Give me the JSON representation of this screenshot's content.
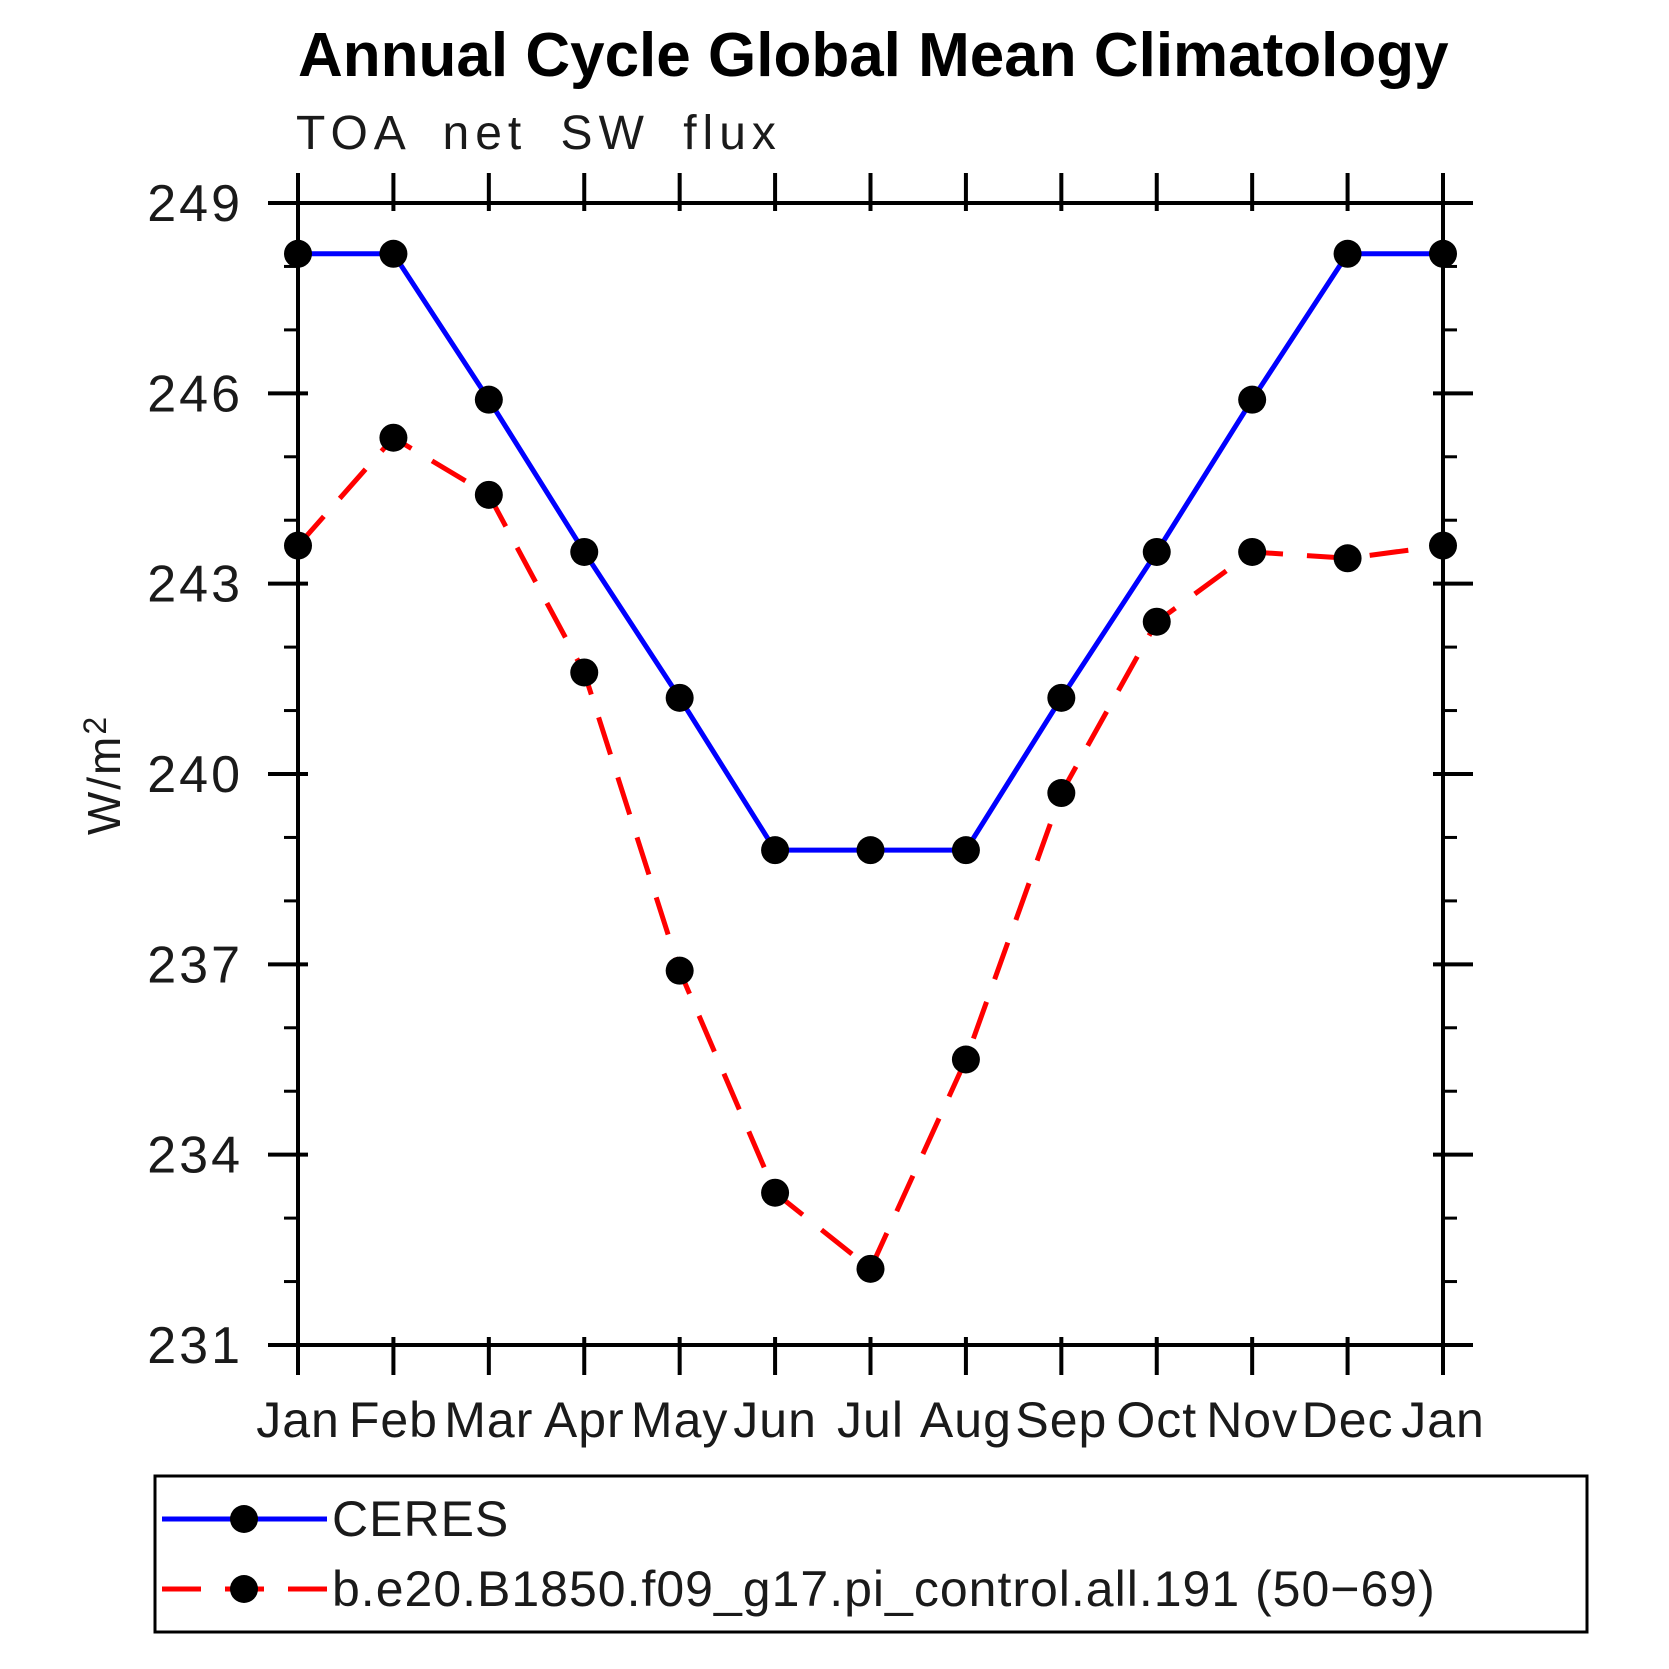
{
  "header": {
    "title": "Annual Cycle Global Mean Climatology",
    "subtitle": "TOA net SW flux"
  },
  "axes": {
    "ylabel": "W/m²",
    "y_tick_labels": [
      "249",
      "246",
      "243",
      "240",
      "237",
      "234",
      "231"
    ],
    "x_tick_labels": [
      "Jan",
      "Feb",
      "Mar",
      "Apr",
      "May",
      "Jun",
      "Jul",
      "Aug",
      "Sep",
      "Oct",
      "Nov",
      "Dec",
      "Jan"
    ]
  },
  "colors": {
    "ceres_line": "#0000ff",
    "model_line": "#ff0000",
    "marker": "#000000",
    "axis": "#000000",
    "background": "#ffffff"
  },
  "chart_data": {
    "type": "line",
    "title": "Annual Cycle Global Mean Climatology",
    "subtitle": "TOA net SW flux",
    "ylabel": "W/m²",
    "xlabel": "",
    "categories": [
      "Jan",
      "Feb",
      "Mar",
      "Apr",
      "May",
      "Jun",
      "Jul",
      "Aug",
      "Sep",
      "Oct",
      "Nov",
      "Dec",
      "Jan"
    ],
    "ylim": [
      231,
      249
    ],
    "yticks_major": [
      231,
      234,
      237,
      240,
      243,
      246,
      249
    ],
    "yticks_minor_step": 1,
    "grid": false,
    "legend_position": "bottom-box",
    "series": [
      {
        "name": "CERES",
        "color": "#0000ff",
        "style": "solid",
        "marker": "circle",
        "marker_color": "#000000",
        "values": [
          248.2,
          248.2,
          245.9,
          243.5,
          241.2,
          238.8,
          238.8,
          238.8,
          241.2,
          243.5,
          245.9,
          248.2,
          248.2
        ]
      },
      {
        "name": "b.e20.B1850.f09_g17.pi_control.all.191 (50−69)",
        "color": "#ff0000",
        "style": "dashed",
        "marker": "circle",
        "marker_color": "#000000",
        "values": [
          243.6,
          245.3,
          244.4,
          241.6,
          236.9,
          233.4,
          232.2,
          235.5,
          239.7,
          242.4,
          243.5,
          243.4,
          243.6
        ]
      }
    ]
  }
}
